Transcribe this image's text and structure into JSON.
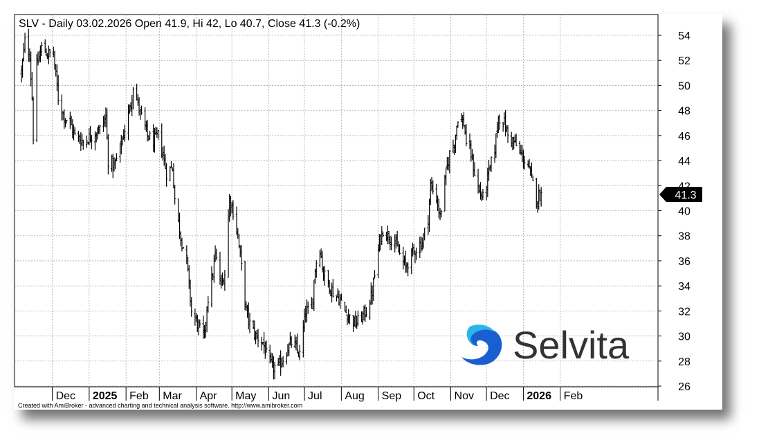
{
  "chart_data": {
    "type": "ohlc",
    "title": "SLV - Daily 03.02.2026 Open 41.9, Hi 42, Lo 40.7, Close 41.3 (-0.2%)",
    "symbol": "SLV",
    "interval": "Daily",
    "last_bar": {
      "date": "03.02.2026",
      "open": 41.9,
      "high": 42,
      "low": 40.7,
      "close": 41.3,
      "change_pct": "-0.2%"
    },
    "last_price_label": "41.3",
    "ylim": [
      25,
      55
    ],
    "y_ticks": [
      26,
      28,
      30,
      32,
      34,
      36,
      38,
      40,
      42,
      44,
      46,
      48,
      50,
      52,
      54
    ],
    "grid": true,
    "months": [
      {
        "label": "Dec",
        "bold": false,
        "month": 12
      },
      {
        "label": "2025",
        "bold": true,
        "month": 1
      },
      {
        "label": "Feb",
        "bold": false,
        "month": 2
      },
      {
        "label": "Mar",
        "bold": false,
        "month": 3
      },
      {
        "label": "Apr",
        "bold": false,
        "month": 4
      },
      {
        "label": "May",
        "bold": false,
        "month": 5
      },
      {
        "label": "Jun",
        "bold": false,
        "month": 6
      },
      {
        "label": "Jul",
        "bold": false,
        "month": 7
      },
      {
        "label": "Aug",
        "bold": false,
        "month": 8
      },
      {
        "label": "Sep",
        "bold": false,
        "month": 9
      },
      {
        "label": "Oct",
        "bold": false,
        "month": 10
      },
      {
        "label": "Nov",
        "bold": false,
        "month": 11
      },
      {
        "label": "Dec",
        "bold": false,
        "month": 12
      },
      {
        "label": "2026",
        "bold": true,
        "month": 1
      },
      {
        "label": "Feb",
        "bold": false,
        "month": 2
      }
    ],
    "series": [
      {
        "type": "close_path",
        "points": [
          [
            "2024-11-05",
            51.0
          ],
          [
            "2024-11-08",
            53.5
          ],
          [
            "2024-11-12",
            52.5
          ],
          [
            "2024-11-14",
            49.0
          ],
          [
            "2024-11-15",
            46.0
          ],
          [
            "2024-11-18",
            51.5
          ],
          [
            "2024-11-22",
            53.0
          ],
          [
            "2024-11-27",
            52.5
          ],
          [
            "2024-12-02",
            52.5
          ],
          [
            "2024-12-06",
            49.0
          ],
          [
            "2024-12-11",
            47.5
          ],
          [
            "2024-12-16",
            47.0
          ],
          [
            "2024-12-20",
            46.0
          ],
          [
            "2024-12-27",
            45.5
          ],
          [
            "2025-01-03",
            46.0
          ],
          [
            "2025-01-10",
            46.5
          ],
          [
            "2025-01-15",
            47.5
          ],
          [
            "2025-01-17",
            44.0
          ],
          [
            "2025-01-22",
            43.5
          ],
          [
            "2025-01-27",
            45.0
          ],
          [
            "2025-01-31",
            46.5
          ],
          [
            "2025-02-05",
            48.5
          ],
          [
            "2025-02-07",
            50.0
          ],
          [
            "2025-02-11",
            48.5
          ],
          [
            "2025-02-14",
            47.5
          ],
          [
            "2025-02-19",
            46.0
          ],
          [
            "2025-02-24",
            45.5
          ],
          [
            "2025-02-28",
            46.0
          ],
          [
            "2025-03-04",
            44.5
          ],
          [
            "2025-03-07",
            43.0
          ],
          [
            "2025-03-12",
            43.5
          ],
          [
            "2025-03-14",
            41.0
          ],
          [
            "2025-03-17",
            39.0
          ],
          [
            "2025-03-20",
            37.5
          ],
          [
            "2025-03-24",
            36.0
          ],
          [
            "2025-03-28",
            32.0
          ],
          [
            "2025-04-02",
            31.0
          ],
          [
            "2025-04-04",
            30.5
          ],
          [
            "2025-04-08",
            30.0
          ],
          [
            "2025-04-10",
            32.5
          ],
          [
            "2025-04-15",
            35.0
          ],
          [
            "2025-04-17",
            36.5
          ],
          [
            "2025-04-22",
            34.0
          ],
          [
            "2025-04-25",
            35.0
          ],
          [
            "2025-04-29",
            41.0
          ],
          [
            "2025-05-02",
            40.0
          ],
          [
            "2025-05-06",
            38.0
          ],
          [
            "2025-05-09",
            35.5
          ],
          [
            "2025-05-13",
            32.0
          ],
          [
            "2025-05-16",
            31.0
          ],
          [
            "2025-05-21",
            30.0
          ],
          [
            "2025-05-27",
            29.5
          ],
          [
            "2025-05-30",
            28.5
          ],
          [
            "2025-06-04",
            27.5
          ],
          [
            "2025-06-09",
            27.5
          ],
          [
            "2025-06-12",
            28.0
          ],
          [
            "2025-06-17",
            29.0
          ],
          [
            "2025-06-20",
            29.5
          ],
          [
            "2025-06-24",
            29.0
          ],
          [
            "2025-06-27",
            28.5
          ],
          [
            "2025-07-02",
            32.0
          ],
          [
            "2025-07-07",
            32.0
          ],
          [
            "2025-07-10",
            35.5
          ],
          [
            "2025-07-14",
            37.0
          ],
          [
            "2025-07-17",
            35.0
          ],
          [
            "2025-07-22",
            34.0
          ],
          [
            "2025-07-25",
            33.5
          ],
          [
            "2025-07-30",
            33.0
          ],
          [
            "2025-08-04",
            32.0
          ],
          [
            "2025-08-08",
            31.5
          ],
          [
            "2025-08-13",
            31.0
          ],
          [
            "2025-08-18",
            31.5
          ],
          [
            "2025-08-22",
            32.0
          ],
          [
            "2025-08-27",
            33.5
          ],
          [
            "2025-09-02",
            37.5
          ],
          [
            "2025-09-05",
            38.5
          ],
          [
            "2025-09-10",
            38.0
          ],
          [
            "2025-09-15",
            37.5
          ],
          [
            "2025-09-19",
            36.5
          ],
          [
            "2025-09-24",
            35.5
          ],
          [
            "2025-09-29",
            36.5
          ],
          [
            "2025-10-03",
            37.0
          ],
          [
            "2025-10-08",
            37.5
          ],
          [
            "2025-10-13",
            39.5
          ],
          [
            "2025-10-15",
            42.0
          ],
          [
            "2025-10-20",
            41.0
          ],
          [
            "2025-10-23",
            39.5
          ],
          [
            "2025-10-28",
            43.0
          ],
          [
            "2025-10-31",
            44.5
          ],
          [
            "2025-11-04",
            45.5
          ],
          [
            "2025-11-07",
            47.5
          ],
          [
            "2025-11-12",
            47.0
          ],
          [
            "2025-11-14",
            45.5
          ],
          [
            "2025-11-18",
            44.5
          ],
          [
            "2025-11-21",
            43.0
          ],
          [
            "2025-11-25",
            41.5
          ],
          [
            "2025-11-28",
            41.0
          ],
          [
            "2025-12-03",
            43.0
          ],
          [
            "2025-12-08",
            45.0
          ],
          [
            "2025-12-11",
            47.5
          ],
          [
            "2025-12-16",
            47.0
          ],
          [
            "2025-12-19",
            46.0
          ],
          [
            "2025-12-24",
            45.5
          ],
          [
            "2025-12-30",
            44.5
          ],
          [
            "2026-01-05",
            43.5
          ],
          [
            "2026-01-08",
            42.5
          ],
          [
            "2026-01-12",
            41.0
          ],
          [
            "2026-01-16",
            41.3
          ]
        ]
      }
    ],
    "annotations": [
      "Selvita"
    ],
    "footer": "Created with AmiBroker - advanced charting and technical analysis software. http://www.amibroker.com"
  },
  "logo": {
    "text": "Selvita",
    "colors": {
      "light": "#2bb6ea",
      "dark": "#1a5fcf"
    }
  },
  "colors": {
    "bar": "#000000",
    "grid": "#aaaaaa",
    "axis": "#000000",
    "price_tag": "#000000"
  }
}
